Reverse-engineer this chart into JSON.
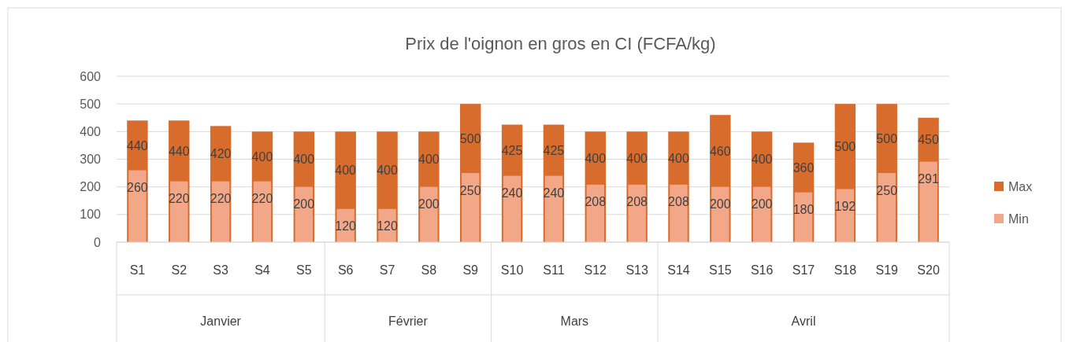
{
  "chart_data": {
    "type": "bar",
    "title": "Prix de l'oignon en gros en CI (FCFA/kg)",
    "categories": [
      "S1",
      "S2",
      "S3",
      "S4",
      "S5",
      "S6",
      "S7",
      "S8",
      "S9",
      "S10",
      "S11",
      "S12",
      "S13",
      "S14",
      "S15",
      "S16",
      "S17",
      "S18",
      "S19",
      "S20"
    ],
    "series": [
      {
        "name": "Max",
        "color": "#d86c2c",
        "values": [
          440,
          440,
          420,
          400,
          400,
          400,
          400,
          400,
          500,
          425,
          425,
          400,
          400,
          400,
          460,
          400,
          360,
          500,
          500,
          450
        ]
      },
      {
        "name": "Min",
        "color": "#f2a888",
        "values": [
          260,
          220,
          220,
          220,
          200,
          120,
          120,
          200,
          250,
          240,
          240,
          208,
          208,
          208,
          200,
          200,
          180,
          192,
          250,
          291
        ]
      }
    ],
    "annotations": [
      "Janvier",
      "Février",
      "Mars",
      "Avril"
    ],
    "ylim": [
      0,
      600
    ],
    "yticks": [
      0,
      100,
      200,
      300,
      400,
      500,
      600
    ],
    "grid": "y",
    "legend": "right",
    "data_labels": true
  }
}
